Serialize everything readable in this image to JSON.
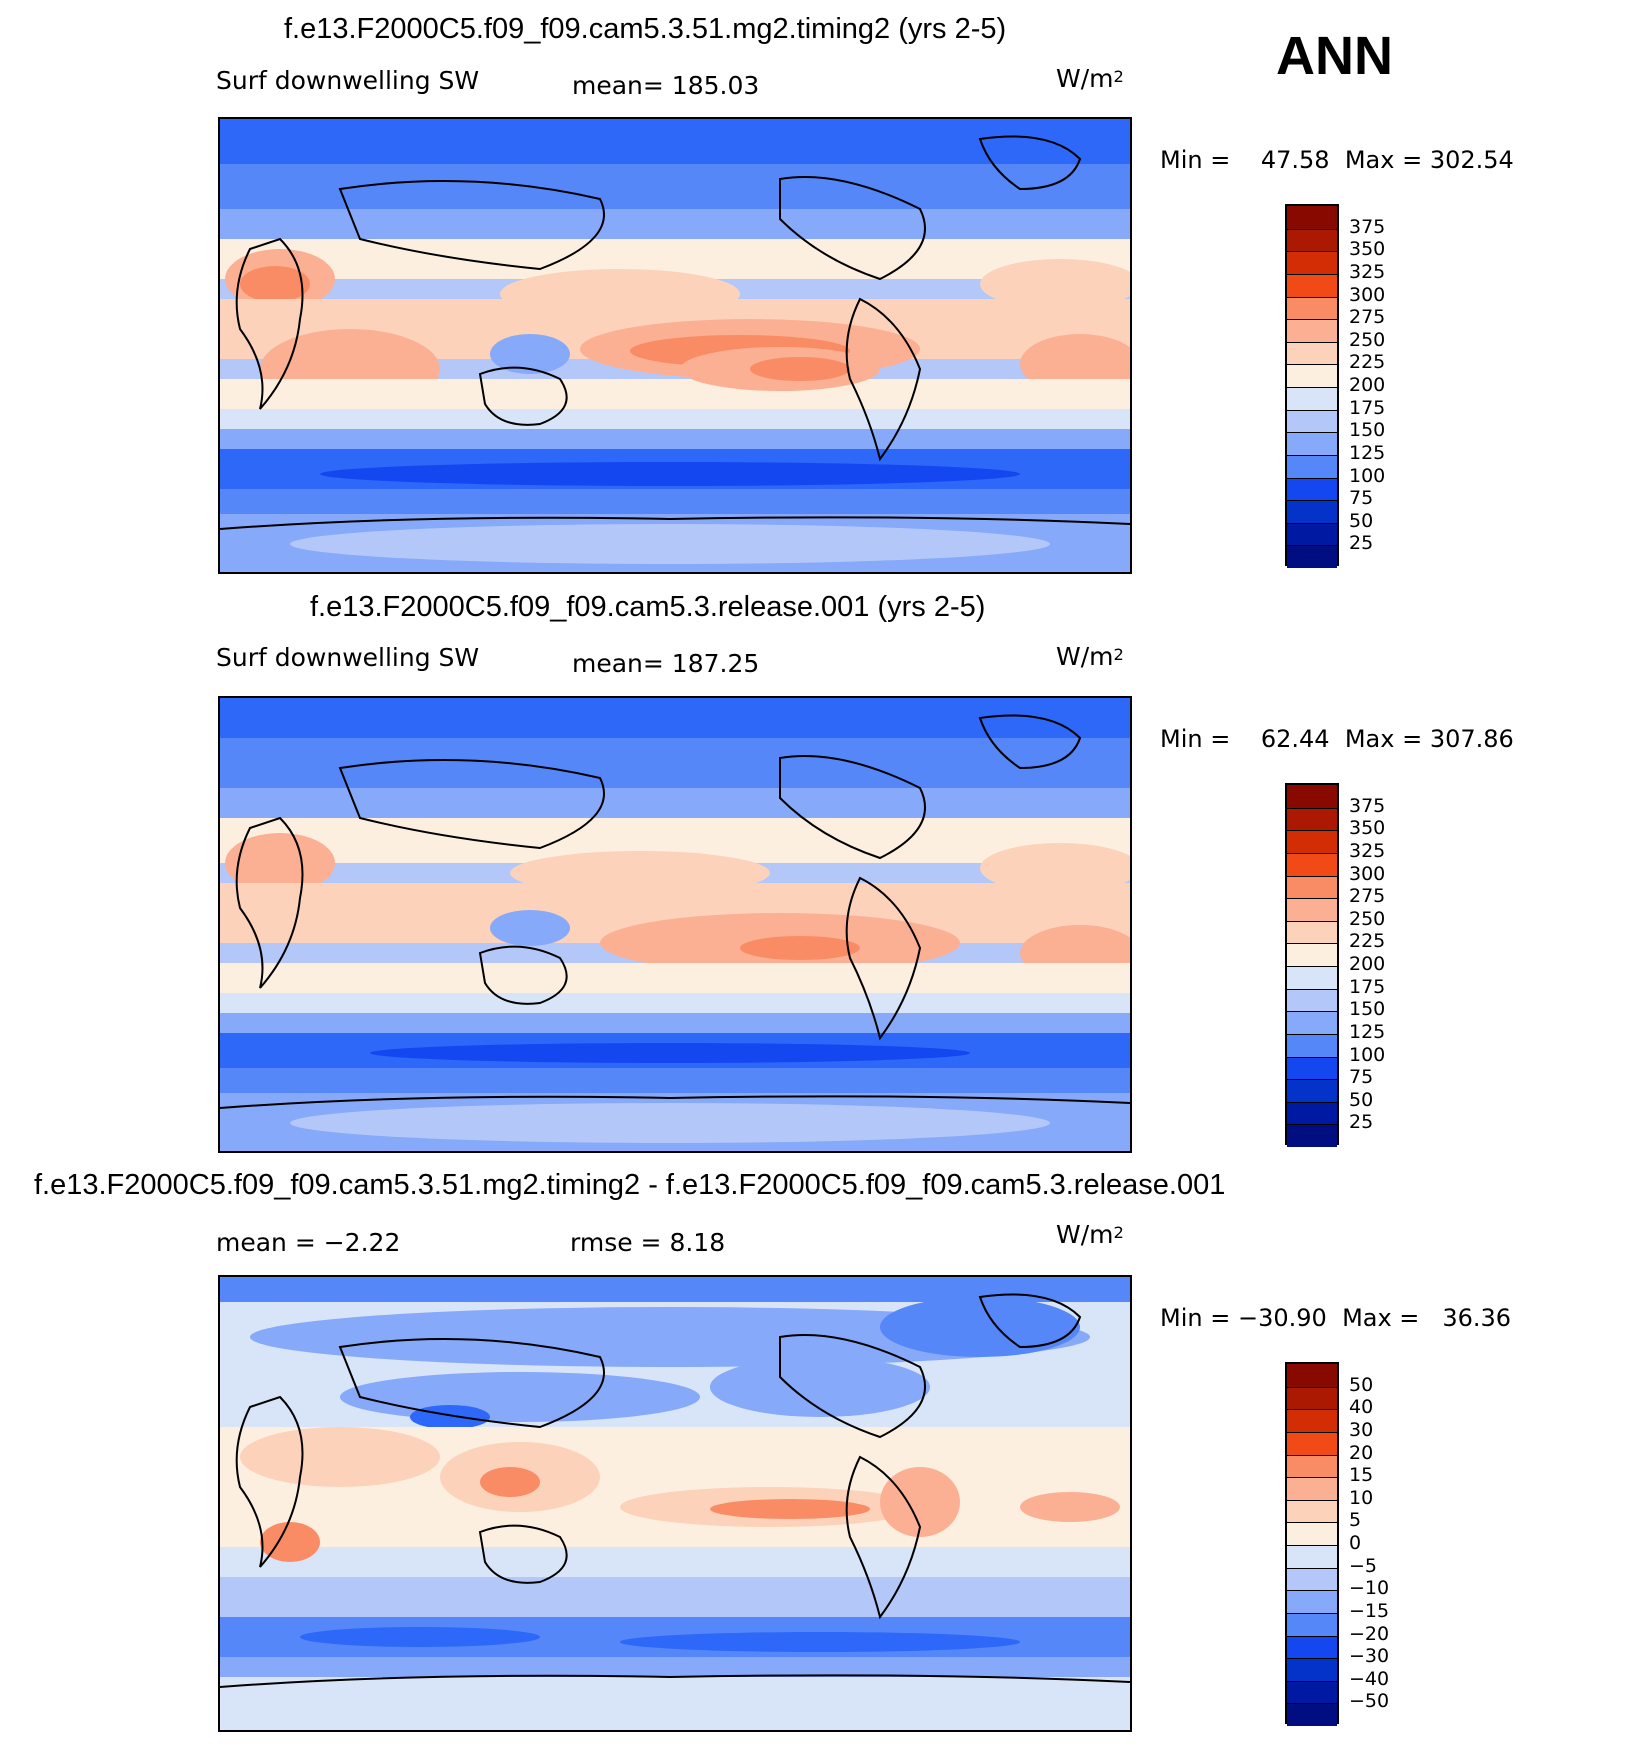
{
  "season": "ANN",
  "colors": {
    "abs_scale": [
      "#000e82",
      "#0019a3",
      "#0333c8",
      "#1547f0",
      "#2d68f8",
      "#5587f8",
      "#86a9f9",
      "#b3c8f9",
      "#d8e4f8",
      "#fdefe0",
      "#fcd2ba",
      "#fbb094",
      "#f98c65",
      "#f66b3e",
      "#f14a16",
      "#d32d06",
      "#ac1902",
      "#880900"
    ],
    "diff_scale": [
      "#000e82",
      "#0019a3",
      "#0333c8",
      "#1547f0",
      "#2d68f8",
      "#5587f8",
      "#86a9f9",
      "#b3c8f9",
      "#d8e4f8",
      "#fdefe0",
      "#fcd2ba",
      "#fbb094",
      "#f98c65",
      "#f66b3e",
      "#f14a16",
      "#d32d06",
      "#ac1902",
      "#880900"
    ]
  },
  "panels": [
    {
      "title": "f.e13.F2000C5.f09_f09.cam5.3.51.mg2.timing2 (yrs 2-5)",
      "left_label": "Surf  downwelling  SW",
      "center_label": "mean=  185.03",
      "units_base": "W/m",
      "units_exp": "2",
      "min_label": "Min  =",
      "min_value": "47.58",
      "max_label": "Max  =",
      "max_value": "302.54",
      "colorbar_labels": [
        "375",
        "350",
        "325",
        "300",
        "275",
        "250",
        "225",
        "200",
        "175",
        "150",
        "125",
        "100",
        "75",
        "50",
        "25"
      ]
    },
    {
      "title": "f.e13.F2000C5.f09_f09.cam5.3.release.001 (yrs 2-5)",
      "left_label": "Surf  downwelling  SW",
      "center_label": "mean=  187.25",
      "units_base": "W/m",
      "units_exp": "2",
      "min_label": "Min  =",
      "min_value": "62.44",
      "max_label": "Max  =",
      "max_value": "307.86",
      "colorbar_labels": [
        "375",
        "350",
        "325",
        "300",
        "275",
        "250",
        "225",
        "200",
        "175",
        "150",
        "125",
        "100",
        "75",
        "50",
        "25"
      ]
    },
    {
      "title": "f.e13.F2000C5.f09_f09.cam5.3.51.mg2.timing2 - f.e13.F2000C5.f09_f09.cam5.3.release.001",
      "left_label": "mean  =    −2.22",
      "center_label": "rmse  =     8.18",
      "units_base": "W/m",
      "units_exp": "2",
      "min_label": "Min  =",
      "min_value": "−30.90",
      "max_label": "Max  =",
      "max_value": "36.36",
      "colorbar_labels": [
        "50",
        "40",
        "30",
        "20",
        "15",
        "10",
        "5",
        "0",
        "−5",
        "−10",
        "−15",
        "−20",
        "−30",
        "−40",
        "−50"
      ]
    }
  ]
}
